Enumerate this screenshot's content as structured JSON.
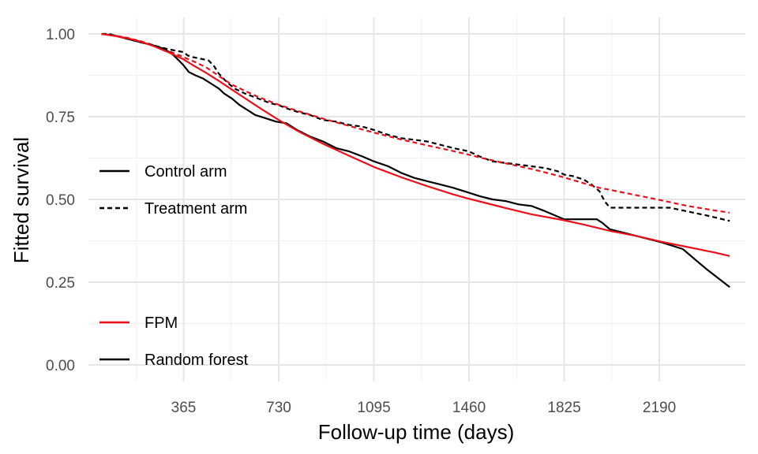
{
  "chart_data": {
    "type": "line",
    "title": "",
    "xlabel": "Follow-up time (days)",
    "ylabel": "Fitted survival",
    "xlim": [
      0,
      2520
    ],
    "ylim": [
      0,
      1.0
    ],
    "x_ticks": [
      365,
      730,
      1095,
      1460,
      1825,
      2190
    ],
    "y_ticks": [
      0.0,
      0.25,
      0.5,
      0.75,
      1.0
    ],
    "y_tick_labels": [
      "0.00",
      "0.25",
      "0.50",
      "0.75",
      "1.00"
    ],
    "grid": true,
    "legend_placement": "left",
    "colors": {
      "red": "#e8111b",
      "black": "#000000"
    },
    "legend_groups": [
      {
        "items": [
          {
            "label": "Control arm",
            "linetype": "solid",
            "color": "#000000"
          },
          {
            "label": "Treatment arm",
            "linetype": "dashed",
            "color": "#000000"
          }
        ]
      },
      {
        "items": [
          {
            "label": "FPM",
            "linetype": "solid",
            "color": "#e8111b"
          },
          {
            "label": "Random forest",
            "linetype": "solid",
            "color": "#000000"
          }
        ]
      }
    ],
    "series": [
      {
        "model": "Random forest",
        "arm": "Treatment arm",
        "color": "#000000",
        "linetype": "dashed",
        "points": [
          [
            50,
            1.0
          ],
          [
            80,
            1.0
          ],
          [
            100,
            0.995
          ],
          [
            150,
            0.985
          ],
          [
            200,
            0.975
          ],
          [
            250,
            0.965
          ],
          [
            300,
            0.955
          ],
          [
            330,
            0.95
          ],
          [
            365,
            0.945
          ],
          [
            380,
            0.935
          ],
          [
            400,
            0.93
          ],
          [
            430,
            0.925
          ],
          [
            460,
            0.92
          ],
          [
            480,
            0.905
          ],
          [
            500,
            0.88
          ],
          [
            530,
            0.855
          ],
          [
            560,
            0.835
          ],
          [
            600,
            0.82
          ],
          [
            650,
            0.805
          ],
          [
            700,
            0.79
          ],
          [
            730,
            0.785
          ],
          [
            760,
            0.775
          ],
          [
            800,
            0.765
          ],
          [
            850,
            0.755
          ],
          [
            900,
            0.74
          ],
          [
            950,
            0.735
          ],
          [
            1000,
            0.725
          ],
          [
            1050,
            0.72
          ],
          [
            1095,
            0.71
          ],
          [
            1150,
            0.695
          ],
          [
            1200,
            0.685
          ],
          [
            1250,
            0.68
          ],
          [
            1300,
            0.675
          ],
          [
            1350,
            0.665
          ],
          [
            1400,
            0.655
          ],
          [
            1460,
            0.645
          ],
          [
            1500,
            0.63
          ],
          [
            1550,
            0.615
          ],
          [
            1600,
            0.61
          ],
          [
            1650,
            0.605
          ],
          [
            1700,
            0.6
          ],
          [
            1750,
            0.595
          ],
          [
            1800,
            0.585
          ],
          [
            1825,
            0.575
          ],
          [
            1860,
            0.57
          ],
          [
            1900,
            0.56
          ],
          [
            1930,
            0.545
          ],
          [
            1960,
            0.525
          ],
          [
            1980,
            0.495
          ],
          [
            2000,
            0.475
          ],
          [
            2100,
            0.475
          ],
          [
            2230,
            0.475
          ],
          [
            2290,
            0.465
          ],
          [
            2380,
            0.45
          ],
          [
            2460,
            0.435
          ]
        ]
      },
      {
        "model": "FPM",
        "arm": "Treatment arm",
        "color": "#e8111b",
        "linetype": "dashed",
        "points": [
          [
            50,
            1.0
          ],
          [
            100,
            0.995
          ],
          [
            150,
            0.988
          ],
          [
            200,
            0.978
          ],
          [
            250,
            0.966
          ],
          [
            300,
            0.951
          ],
          [
            350,
            0.935
          ],
          [
            400,
            0.918
          ],
          [
            450,
            0.9
          ],
          [
            500,
            0.873
          ],
          [
            550,
            0.847
          ],
          [
            600,
            0.828
          ],
          [
            650,
            0.81
          ],
          [
            700,
            0.795
          ],
          [
            730,
            0.786
          ],
          [
            800,
            0.768
          ],
          [
            900,
            0.744
          ],
          [
            1000,
            0.722
          ],
          [
            1095,
            0.702
          ],
          [
            1200,
            0.681
          ],
          [
            1300,
            0.663
          ],
          [
            1400,
            0.646
          ],
          [
            1460,
            0.635
          ],
          [
            1500,
            0.627
          ],
          [
            1600,
            0.609
          ],
          [
            1700,
            0.592
          ],
          [
            1800,
            0.572
          ],
          [
            1900,
            0.549
          ],
          [
            1960,
            0.535
          ],
          [
            2000,
            0.529
          ],
          [
            2100,
            0.513
          ],
          [
            2200,
            0.497
          ],
          [
            2300,
            0.48
          ],
          [
            2400,
            0.467
          ],
          [
            2460,
            0.46
          ]
        ]
      },
      {
        "model": "Random forest",
        "arm": "Control arm",
        "color": "#000000",
        "linetype": "solid",
        "points": [
          [
            50,
            1.0
          ],
          [
            100,
            0.995
          ],
          [
            150,
            0.985
          ],
          [
            200,
            0.975
          ],
          [
            250,
            0.965
          ],
          [
            290,
            0.955
          ],
          [
            320,
            0.94
          ],
          [
            340,
            0.925
          ],
          [
            365,
            0.905
          ],
          [
            385,
            0.885
          ],
          [
            410,
            0.875
          ],
          [
            440,
            0.865
          ],
          [
            470,
            0.85
          ],
          [
            500,
            0.835
          ],
          [
            520,
            0.82
          ],
          [
            550,
            0.805
          ],
          [
            580,
            0.785
          ],
          [
            610,
            0.77
          ],
          [
            640,
            0.755
          ],
          [
            680,
            0.745
          ],
          [
            720,
            0.735
          ],
          [
            760,
            0.73
          ],
          [
            800,
            0.71
          ],
          [
            850,
            0.69
          ],
          [
            900,
            0.675
          ],
          [
            950,
            0.655
          ],
          [
            1000,
            0.645
          ],
          [
            1050,
            0.63
          ],
          [
            1095,
            0.615
          ],
          [
            1150,
            0.6
          ],
          [
            1200,
            0.58
          ],
          [
            1250,
            0.565
          ],
          [
            1300,
            0.555
          ],
          [
            1350,
            0.545
          ],
          [
            1400,
            0.535
          ],
          [
            1460,
            0.52
          ],
          [
            1500,
            0.51
          ],
          [
            1550,
            0.5
          ],
          [
            1600,
            0.495
          ],
          [
            1650,
            0.485
          ],
          [
            1700,
            0.48
          ],
          [
            1750,
            0.465
          ],
          [
            1825,
            0.44
          ],
          [
            1900,
            0.44
          ],
          [
            1950,
            0.44
          ],
          [
            1970,
            0.43
          ],
          [
            2000,
            0.41
          ],
          [
            2050,
            0.4
          ],
          [
            2100,
            0.39
          ],
          [
            2200,
            0.37
          ],
          [
            2280,
            0.35
          ],
          [
            2370,
            0.29
          ],
          [
            2460,
            0.235
          ]
        ]
      },
      {
        "model": "FPM",
        "arm": "Control arm",
        "color": "#e8111b",
        "linetype": "solid",
        "points": [
          [
            50,
            1.0
          ],
          [
            100,
            0.994
          ],
          [
            150,
            0.987
          ],
          [
            200,
            0.977
          ],
          [
            250,
            0.963
          ],
          [
            300,
            0.947
          ],
          [
            365,
            0.923
          ],
          [
            400,
            0.906
          ],
          [
            450,
            0.883
          ],
          [
            500,
            0.858
          ],
          [
            550,
            0.832
          ],
          [
            600,
            0.806
          ],
          [
            650,
            0.78
          ],
          [
            700,
            0.755
          ],
          [
            730,
            0.74
          ],
          [
            800,
            0.708
          ],
          [
            900,
            0.668
          ],
          [
            1000,
            0.632
          ],
          [
            1095,
            0.598
          ],
          [
            1200,
            0.567
          ],
          [
            1300,
            0.54
          ],
          [
            1400,
            0.515
          ],
          [
            1460,
            0.502
          ],
          [
            1500,
            0.494
          ],
          [
            1600,
            0.474
          ],
          [
            1700,
            0.455
          ],
          [
            1825,
            0.437
          ],
          [
            1900,
            0.424
          ],
          [
            2000,
            0.405
          ],
          [
            2100,
            0.39
          ],
          [
            2200,
            0.372
          ],
          [
            2300,
            0.356
          ],
          [
            2400,
            0.34
          ],
          [
            2460,
            0.329
          ]
        ]
      }
    ]
  }
}
